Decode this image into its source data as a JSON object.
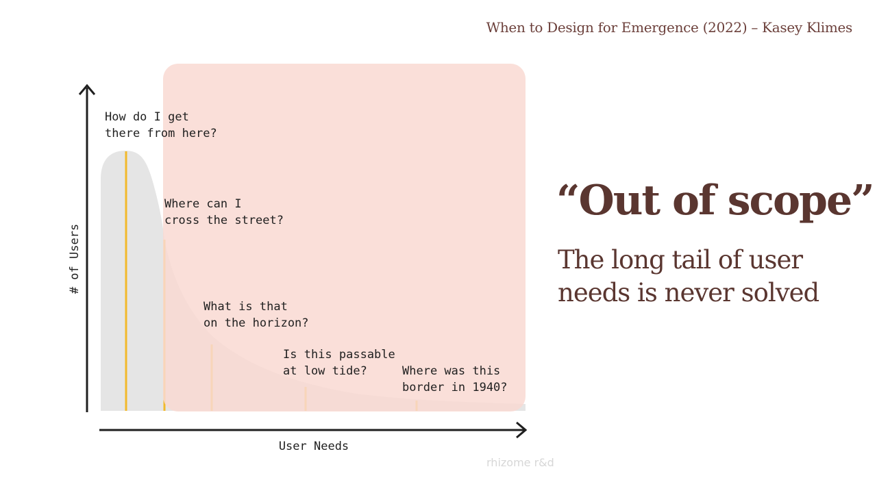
{
  "citation": "When to Design for Emergence (2022) – Kasey Klimes",
  "headline": "“Out of scope”",
  "subline": "The long tail of user needs is never solved",
  "watermark": "rhizome r&d",
  "colors": {
    "highlight": "#f9d9d2",
    "curve_fill": "#e5e5e5",
    "marker": "#f2b92b",
    "text_brown": "#5a3630",
    "axis": "#1f1f1f"
  },
  "chart_data": {
    "type": "area",
    "title": "",
    "xlabel": "User Needs",
    "ylabel": "# of Users",
    "highlighted_region": "Out of scope",
    "annotations": [
      {
        "lines": [
          "How do I get",
          "there from here?"
        ]
      },
      {
        "lines": [
          "Where can I",
          "cross the street?"
        ]
      },
      {
        "lines": [
          "What is that",
          "on the horizon?"
        ]
      },
      {
        "lines": [
          "Is this passable",
          "at low tide?"
        ]
      },
      {
        "lines": [
          "Where was this",
          "border in 1940?"
        ]
      }
    ]
  }
}
